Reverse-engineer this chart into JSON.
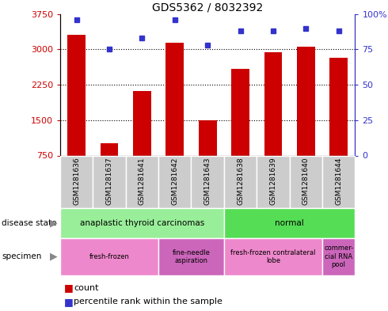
{
  "title": "GDS5362 / 8032392",
  "samples": [
    "GSM1281636",
    "GSM1281637",
    "GSM1281641",
    "GSM1281642",
    "GSM1281643",
    "GSM1281638",
    "GSM1281639",
    "GSM1281640",
    "GSM1281644"
  ],
  "counts": [
    3310,
    1010,
    2120,
    3140,
    1500,
    2580,
    2940,
    3060,
    2820
  ],
  "percentiles": [
    96,
    75,
    83,
    96,
    78,
    88,
    88,
    90,
    88
  ],
  "ylim_left": [
    750,
    3750
  ],
  "ylim_right": [
    0,
    100
  ],
  "yticks_left": [
    750,
    1500,
    2250,
    3000,
    3750
  ],
  "yticks_right": [
    0,
    25,
    50,
    75,
    100
  ],
  "bar_color": "#cc0000",
  "dot_color": "#3333cc",
  "disease_state_groups": [
    {
      "label": "anaplastic thyroid carcinomas",
      "start": 0,
      "end": 5,
      "color": "#99ee99"
    },
    {
      "label": "normal",
      "start": 5,
      "end": 9,
      "color": "#55dd55"
    }
  ],
  "specimen_groups": [
    {
      "label": "fresh-frozen",
      "start": 0,
      "end": 3,
      "color": "#ee88cc"
    },
    {
      "label": "fine-needle\naspiration",
      "start": 3,
      "end": 5,
      "color": "#cc66bb"
    },
    {
      "label": "fresh-frozen contralateral\nlobe",
      "start": 5,
      "end": 8,
      "color": "#ee88cc"
    },
    {
      "label": "commer-\ncial RNA\npool",
      "start": 8,
      "end": 9,
      "color": "#cc66bb"
    }
  ],
  "tick_bg_color": "#cccccc",
  "grid_color": "#000000",
  "fig_bg": "#ffffff"
}
